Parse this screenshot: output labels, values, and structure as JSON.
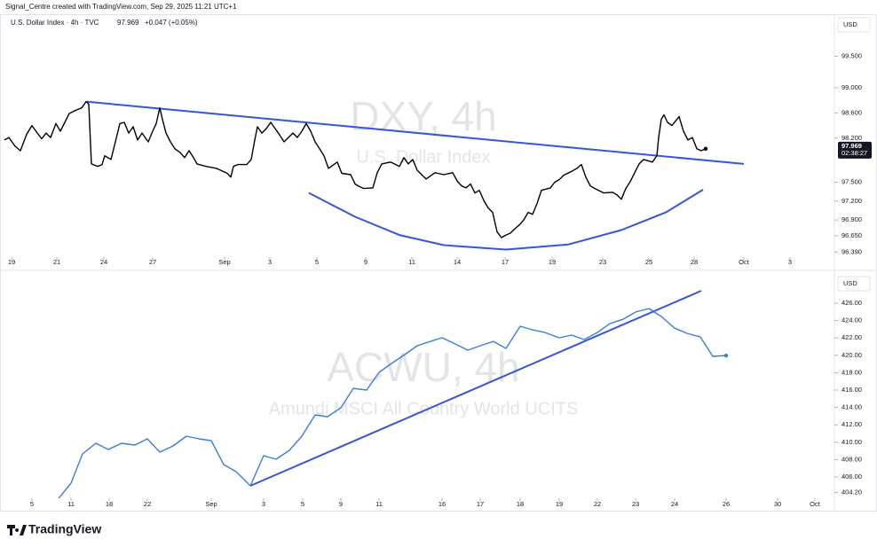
{
  "header": {
    "author": "Signal_Centre created with TradingView.com, Sep 29, 2025 11:21 UTC+1",
    "symbol": "U.S. Dollar Index · 4h · TVC",
    "last": "97.969",
    "change": "+0.047 (+0.05%)"
  },
  "footer": {
    "brand": "TradingView"
  },
  "chart_data": [
    {
      "type": "line",
      "title": "DXY, 4h",
      "subtitle": "U.S. Dollar Index",
      "currency": "USD",
      "price_label": "97.969",
      "countdown": "02:38:27",
      "xlim": [
        0,
        940
      ],
      "ylim": [
        96.31,
        100.14
      ],
      "xticks": [
        {
          "value": 13,
          "label": "19"
        },
        {
          "value": 64,
          "label": "21"
        },
        {
          "value": 117,
          "label": "24"
        },
        {
          "value": 172,
          "label": "27"
        },
        {
          "value": 253,
          "label": "Sep"
        },
        {
          "value": 304,
          "label": "3"
        },
        {
          "value": 357,
          "label": "5"
        },
        {
          "value": 412,
          "label": "9"
        },
        {
          "value": 464,
          "label": "11"
        },
        {
          "value": 515,
          "label": "14"
        },
        {
          "value": 569,
          "label": "17"
        },
        {
          "value": 622,
          "label": "19"
        },
        {
          "value": 679,
          "label": "23"
        },
        {
          "value": 731,
          "label": "25"
        },
        {
          "value": 782,
          "label": "28"
        },
        {
          "value": 838,
          "label": "Oct"
        },
        {
          "value": 890,
          "label": "3"
        }
      ],
      "yticks": [
        {
          "value": 99.5,
          "label": "99.500"
        },
        {
          "value": 99.0,
          "label": "99.000"
        },
        {
          "value": 98.6,
          "label": "98.600"
        },
        {
          "value": 98.2,
          "label": "98.200"
        },
        {
          "value": 97.5,
          "label": "97.500"
        },
        {
          "value": 97.2,
          "label": "97.200"
        },
        {
          "value": 96.9,
          "label": "96.900"
        },
        {
          "value": 96.65,
          "label": "96.650"
        },
        {
          "value": 96.39,
          "label": "96.390"
        }
      ],
      "series": [
        {
          "color": "#000000",
          "x": [
            5,
            10,
            17,
            23,
            30,
            36,
            42,
            47,
            52,
            57,
            63,
            68,
            73,
            78,
            85,
            92,
            97,
            100,
            103,
            110,
            115,
            118,
            125,
            130,
            135,
            140,
            145,
            150,
            155,
            160,
            167,
            172,
            176,
            180,
            183,
            187,
            192,
            197,
            203,
            208,
            213,
            218,
            222,
            232,
            244,
            250,
            256,
            260,
            263,
            268,
            278,
            283,
            287,
            290,
            295,
            300,
            305,
            310,
            315,
            320,
            330,
            335,
            340,
            345,
            350,
            355,
            360,
            365,
            370,
            380,
            385,
            395,
            400,
            405,
            410,
            420,
            425,
            430,
            440,
            450,
            455,
            460,
            465,
            470,
            475,
            480,
            490,
            500,
            510,
            515,
            520,
            525,
            530,
            535,
            540,
            545,
            550,
            555,
            560,
            565,
            570,
            575,
            580,
            585,
            590,
            595,
            600,
            605,
            610,
            620,
            625,
            630,
            635,
            645,
            650,
            655,
            660,
            665,
            670,
            680,
            690,
            695,
            700,
            705,
            710,
            715,
            720,
            725,
            735,
            740,
            742,
            745,
            748,
            752,
            757,
            765,
            770,
            775,
            780,
            785,
            790,
            795
          ],
          "values": [
            98.17,
            98.21,
            98.07,
            98.0,
            98.26,
            98.4,
            98.28,
            98.19,
            98.28,
            98.21,
            98.43,
            98.31,
            98.45,
            98.59,
            98.64,
            98.68,
            98.78,
            98.74,
            97.79,
            97.75,
            97.78,
            97.92,
            97.86,
            98.14,
            98.43,
            98.45,
            98.28,
            98.38,
            98.17,
            98.28,
            98.14,
            98.31,
            98.43,
            98.68,
            98.5,
            98.28,
            98.14,
            98.03,
            97.97,
            97.89,
            98.0,
            97.89,
            97.79,
            97.75,
            97.72,
            97.68,
            97.64,
            97.58,
            97.75,
            97.78,
            97.78,
            97.86,
            98.17,
            98.38,
            98.28,
            98.35,
            98.45,
            98.35,
            98.25,
            98.14,
            98.28,
            98.21,
            98.31,
            98.43,
            98.31,
            98.14,
            98.03,
            97.92,
            97.72,
            97.82,
            97.64,
            97.62,
            97.47,
            97.43,
            97.4,
            97.41,
            97.65,
            97.79,
            97.82,
            97.75,
            97.89,
            97.79,
            97.86,
            97.69,
            97.62,
            97.55,
            97.65,
            97.62,
            97.65,
            97.52,
            97.44,
            97.41,
            97.47,
            97.33,
            97.37,
            97.21,
            97.09,
            97.02,
            96.71,
            96.62,
            96.66,
            96.69,
            96.76,
            96.82,
            96.9,
            97.02,
            96.99,
            97.16,
            97.37,
            97.41,
            97.5,
            97.54,
            97.61,
            97.68,
            97.72,
            97.78,
            97.58,
            97.44,
            97.4,
            97.33,
            97.34,
            97.3,
            97.23,
            97.4,
            97.51,
            97.65,
            97.79,
            97.86,
            97.82,
            97.92,
            98.21,
            98.5,
            98.57,
            98.45,
            98.4,
            98.54,
            98.31,
            98.17,
            98.21,
            98.03,
            98.0,
            98.03
          ]
        }
      ],
      "drawings": [
        {
          "color": "#3656d6",
          "x": [
            97,
            838
          ],
          "values": [
            98.78,
            97.79
          ]
        },
        {
          "color": "#3656d6",
          "x": [
            348,
            400,
            450,
            500,
            570,
            640,
            700,
            750,
            792
          ],
          "values": [
            97.33,
            96.95,
            96.66,
            96.5,
            96.43,
            96.51,
            96.74,
            97.02,
            97.38
          ]
        }
      ]
    },
    {
      "type": "line",
      "title": "ACWU, 4h",
      "subtitle": "Amundi MSCI All Country World UCITS",
      "currency": "USD",
      "xlim": [
        0,
        940
      ],
      "ylim": [
        403.55,
        429.27
      ],
      "xticks": [
        {
          "value": 36,
          "label": "5"
        },
        {
          "value": 80,
          "label": "11"
        },
        {
          "value": 123,
          "label": "18"
        },
        {
          "value": 166,
          "label": "22"
        },
        {
          "value": 238,
          "label": "Sep"
        },
        {
          "value": 297,
          "label": "3"
        },
        {
          "value": 341,
          "label": "5"
        },
        {
          "value": 384,
          "label": "9"
        },
        {
          "value": 427,
          "label": "11"
        },
        {
          "value": 498,
          "label": "16"
        },
        {
          "value": 541,
          "label": "17"
        },
        {
          "value": 586,
          "label": "18"
        },
        {
          "value": 630,
          "label": "19"
        },
        {
          "value": 673,
          "label": "22"
        },
        {
          "value": 716,
          "label": "23"
        },
        {
          "value": 760,
          "label": "24"
        },
        {
          "value": 818,
          "label": "26"
        },
        {
          "value": 876,
          "label": "30"
        },
        {
          "value": 918,
          "label": "Oct"
        }
      ],
      "yticks": [
        {
          "value": 426,
          "label": "426.00"
        },
        {
          "value": 424,
          "label": "424.00"
        },
        {
          "value": 422,
          "label": "422.00"
        },
        {
          "value": 420,
          "label": "420.00"
        },
        {
          "value": 418,
          "label": "418.00"
        },
        {
          "value": 416,
          "label": "416.00"
        },
        {
          "value": 414,
          "label": "414.00"
        },
        {
          "value": 412,
          "label": "412.00"
        },
        {
          "value": 410,
          "label": "410.00"
        },
        {
          "value": 408,
          "label": "408.00"
        },
        {
          "value": 406,
          "label": "406.00"
        },
        {
          "value": 404.2,
          "label": "404.20"
        }
      ],
      "series": [
        {
          "color": "#3a7fd5",
          "x": [
            65,
            80,
            93,
            108,
            122,
            137,
            152,
            166,
            180,
            195,
            210,
            224,
            238,
            252,
            266,
            282,
            297,
            311,
            326,
            340,
            355,
            369,
            384,
            398,
            413,
            427,
            441,
            456,
            470,
            485,
            498,
            513,
            527,
            541,
            556,
            570,
            586,
            600,
            614,
            630,
            644,
            658,
            673,
            687,
            702,
            716,
            731,
            745,
            760,
            774,
            789,
            803,
            818
          ],
          "values": [
            403.4,
            405.29,
            408.65,
            409.88,
            409.16,
            409.88,
            409.67,
            410.39,
            408.86,
            409.57,
            410.69,
            410.39,
            410.18,
            407.43,
            406.61,
            404.98,
            408.45,
            408.04,
            409.06,
            410.69,
            413.14,
            412.94,
            413.96,
            416.2,
            416.0,
            418.04,
            419.06,
            420.08,
            421.1,
            421.61,
            422.02,
            421.31,
            420.59,
            421.1,
            421.61,
            420.8,
            423.35,
            422.94,
            422.63,
            422.02,
            422.33,
            421.82,
            422.63,
            423.65,
            424.16,
            424.98,
            425.39,
            424.47,
            423.14,
            422.53,
            422.12,
            419.88,
            419.98
          ]
        }
      ],
      "drawings": [
        {
          "color": "#3656d6",
          "x": [
            282,
            790
          ],
          "values": [
            404.98,
            427.43
          ]
        }
      ]
    }
  ]
}
